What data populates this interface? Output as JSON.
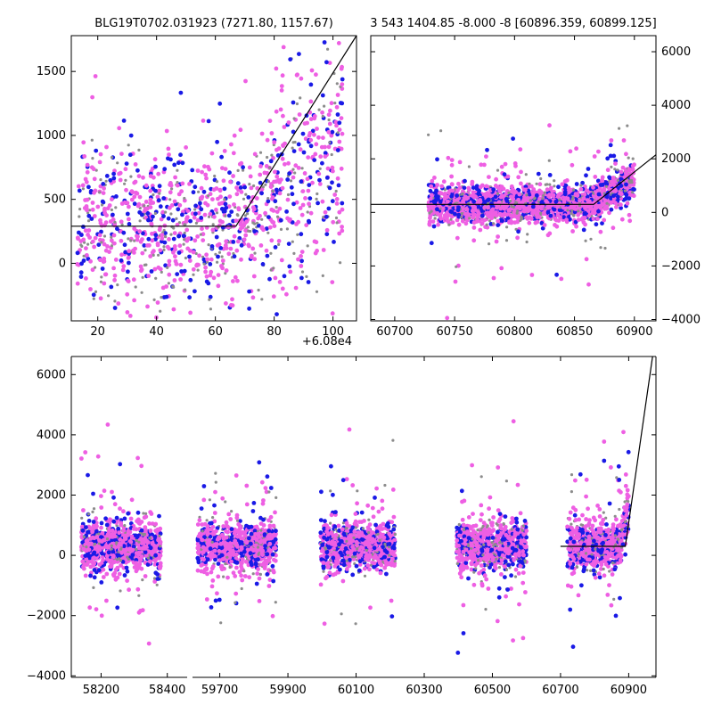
{
  "figure": {
    "width": 800,
    "height": 800,
    "colors": {
      "magenta": "#ee5fe3",
      "blue": "#1a1ae6",
      "grey": "#8c8c8c",
      "model": "#000000"
    }
  },
  "chart_data": [
    {
      "id": "top-left",
      "type": "scatter",
      "title": "BLG19T0702.031923 (7271.80, 1157.67)",
      "offset_label": "+6.08e4",
      "xlim": [
        11,
        108
      ],
      "ylim": [
        -450,
        1780
      ],
      "xticks": [
        20,
        40,
        60,
        80,
        100
      ],
      "yticks": [
        0,
        500,
        1000,
        1500
      ],
      "ytick_labels": [
        "0",
        "500",
        "1000",
        "1500"
      ],
      "ytick_side": "left",
      "seed": 11,
      "point_count": 1200,
      "model_line": {
        "x": [
          11,
          67,
          108
        ],
        "y": [
          290,
          290,
          1780
        ]
      }
    },
    {
      "id": "top-right",
      "type": "scatter",
      "title": "3 543 1404.85 -8.000 -8 [60896.359, 60899.125]",
      "xlim": [
        60680,
        60918
      ],
      "ylim": [
        -4050,
        6600
      ],
      "xticks": [
        60700,
        60750,
        60800,
        60850,
        60900
      ],
      "yticks": [
        -4000,
        -2000,
        0,
        2000,
        4000,
        6000
      ],
      "ytick_labels": [
        "−4000",
        "−2000",
        "0",
        "2000",
        "4000",
        "6000"
      ],
      "ytick_side": "right",
      "seed": 29,
      "point_count": 2400,
      "model_line": {
        "x": [
          60680,
          60866,
          60918
        ],
        "y": [
          300,
          300,
          2150
        ]
      }
    },
    {
      "id": "bottom",
      "type": "scatter",
      "xticks": [
        "58200",
        "58400",
        "59700",
        "59900",
        "60100",
        "60300",
        "60500",
        "60700",
        "60900"
      ],
      "yticks": [
        -4000,
        -2000,
        0,
        2000,
        4000,
        6000
      ],
      "ytick_labels": [
        "−4000",
        "−2000",
        "0",
        "2000",
        "4000",
        "6000"
      ],
      "ylim": [
        -4050,
        6600
      ],
      "seed": 47,
      "segments": [
        {
          "xlim": [
            58110,
            58460
          ],
          "ticks": [
            58200,
            58400
          ],
          "clusters": [
            [
              58140,
              58380
            ]
          ]
        },
        {
          "xlim": [
            59620,
            60980
          ],
          "ticks": [
            59700,
            59900,
            60100,
            60300,
            60500,
            60700,
            60900
          ],
          "clusters": [
            [
              59635,
              59865
            ],
            [
              59995,
              60215
            ],
            [
              60395,
              60600
            ],
            [
              60720,
              60900
            ]
          ]
        }
      ],
      "model_line": {
        "x": [
          60700,
          60890,
          60970
        ],
        "y": [
          300,
          300,
          6650
        ]
      }
    }
  ]
}
